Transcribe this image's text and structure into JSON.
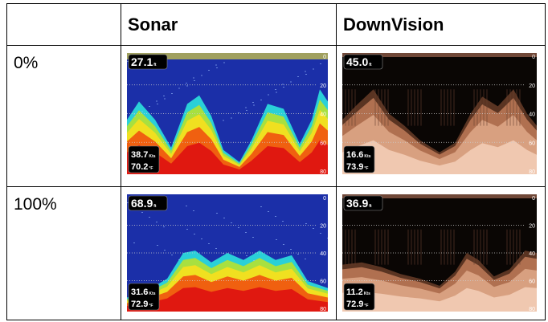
{
  "table": {
    "columns": [
      "Sonar",
      "DownVision"
    ],
    "rows": [
      {
        "label": "0%",
        "sonar": {
          "depth": "27.1",
          "depth_unit": "ft",
          "speed": "38.7",
          "speed_unit": "Kts",
          "temp": "70.2",
          "temp_unit": "°F",
          "scale": [
            "0",
            "20",
            "40",
            "60",
            "80"
          ]
        },
        "downvision": {
          "depth": "45.0",
          "depth_unit": "ft",
          "speed": "16.6",
          "speed_unit": "Kts",
          "temp": "73.9",
          "temp_unit": "°F",
          "scale": [
            "0",
            "20",
            "40",
            "60",
            "80"
          ]
        }
      },
      {
        "label": "100%",
        "sonar": {
          "depth": "68.9",
          "depth_unit": "ft",
          "speed": "31.6",
          "speed_unit": "Kts",
          "temp": "72.9",
          "temp_unit": "°F",
          "scale": [
            "0",
            "20",
            "40",
            "60",
            "80"
          ]
        },
        "downvision": {
          "depth": "36.9",
          "depth_unit": "ft",
          "speed": "11.2",
          "speed_unit": "Kts",
          "temp": "72.9",
          "temp_unit": "°F",
          "scale": [
            "0",
            "20",
            "40",
            "60",
            "80"
          ]
        }
      }
    ]
  }
}
